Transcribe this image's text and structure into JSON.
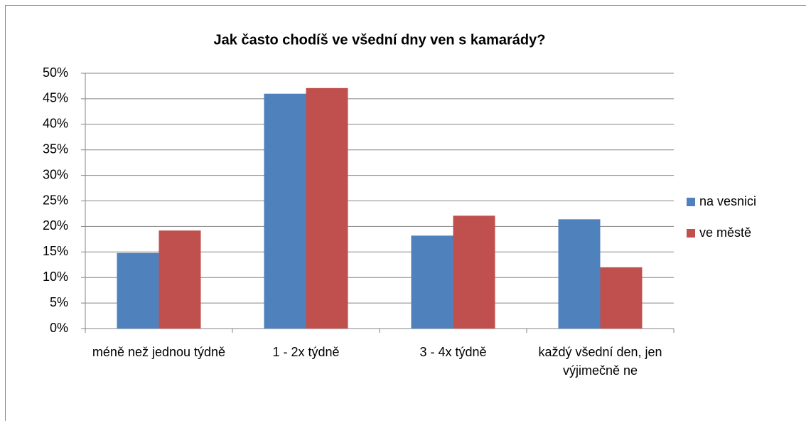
{
  "chart_data": {
    "type": "bar",
    "title": "Jak často chodíš ve všední dny ven s kamarády?",
    "categories": [
      "méně než jednou týdně",
      "1 - 2x týdně",
      "3 - 4x týdně",
      "každý všední den, jen výjimečně ne"
    ],
    "series": [
      {
        "name": "na vesnici",
        "color": "#4f81bd",
        "values": [
          14.8,
          46,
          18.2,
          21.4
        ]
      },
      {
        "name": "ve městě",
        "color": "#c0504d",
        "values": [
          19.2,
          47.1,
          22.1,
          12
        ]
      }
    ],
    "ylim": [
      0,
      50
    ],
    "yticks": [
      {
        "value": 0,
        "label": "0%"
      },
      {
        "value": 5,
        "label": "5%"
      },
      {
        "value": 10,
        "label": "10%"
      },
      {
        "value": 15,
        "label": "15%"
      },
      {
        "value": 20,
        "label": "20%"
      },
      {
        "value": 25,
        "label": "25%"
      },
      {
        "value": 30,
        "label": "30%"
      },
      {
        "value": 35,
        "label": "35%"
      },
      {
        "value": 40,
        "label": "40%"
      },
      {
        "value": 45,
        "label": "45%"
      },
      {
        "value": 50,
        "label": "50%"
      }
    ],
    "grid": true,
    "legend": "right"
  }
}
